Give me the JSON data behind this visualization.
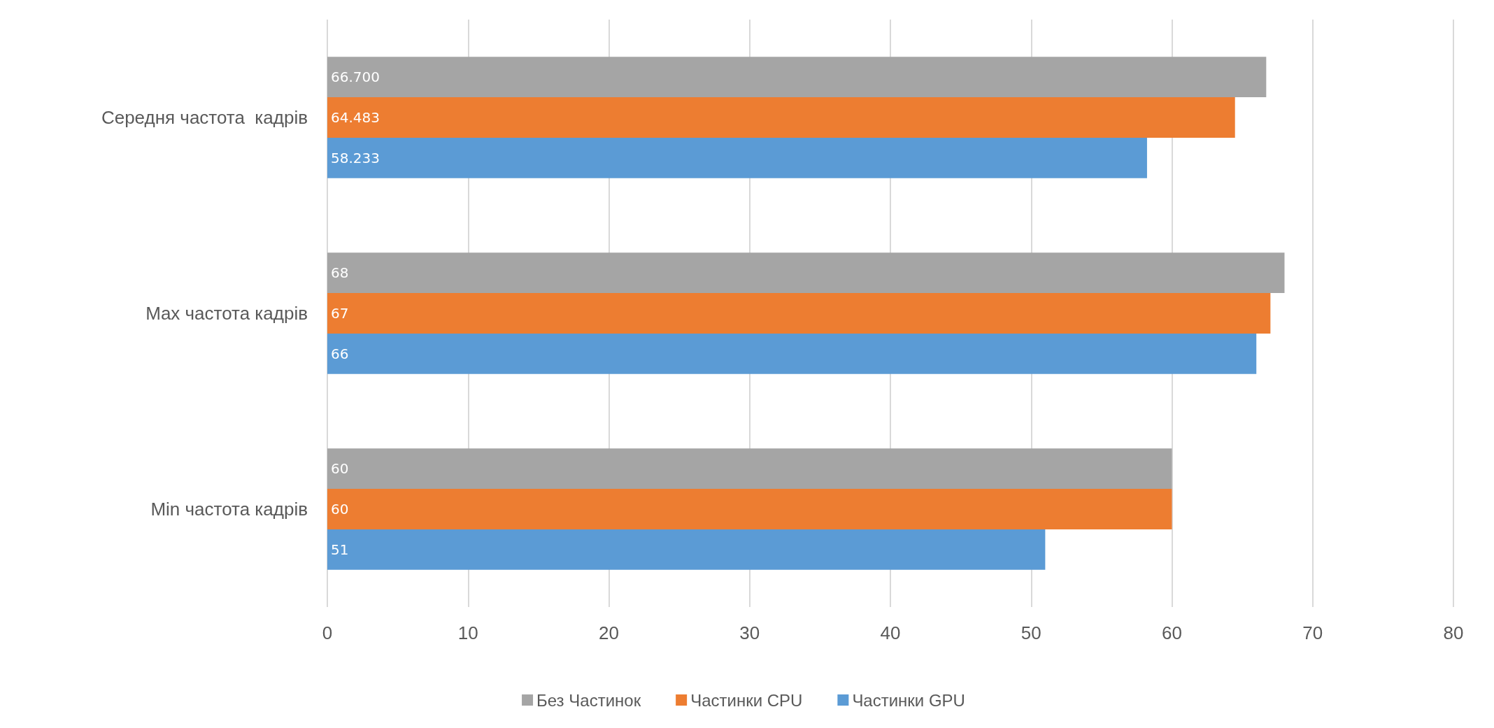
{
  "chart_data": {
    "type": "bar",
    "orientation": "horizontal",
    "categories": [
      "Середня частота  кадрів",
      "Max частота кадрів",
      "Min частота кадрів"
    ],
    "series": [
      {
        "name": "Без Частинок",
        "color": "#a5a5a5",
        "values": [
          66.7,
          68,
          60
        ],
        "value_labels": [
          "66.700",
          "68",
          "60"
        ]
      },
      {
        "name": "Частинки CPU",
        "color": "#ed7d31",
        "values": [
          64.483,
          67,
          60
        ],
        "value_labels": [
          "64.483",
          "67",
          "60"
        ]
      },
      {
        "name": "Частинки GPU",
        "color": "#5b9bd5",
        "values": [
          58.233,
          66,
          51
        ],
        "value_labels": [
          "58.233",
          "66",
          "51"
        ]
      }
    ],
    "xlim": [
      0,
      80
    ],
    "xticks": [
      0,
      10,
      20,
      30,
      40,
      50,
      60,
      70,
      80
    ],
    "grid": "x",
    "legend": "bottom"
  }
}
